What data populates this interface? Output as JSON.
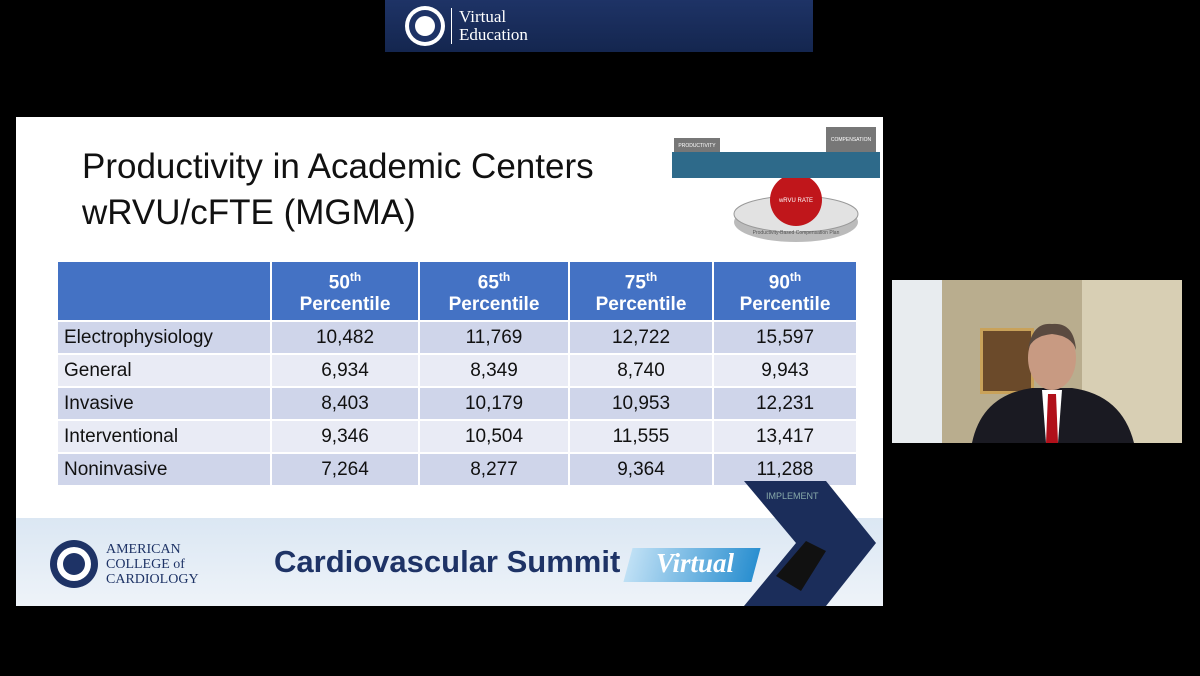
{
  "banner": {
    "line1": "Virtual",
    "line2": "Education"
  },
  "slide": {
    "title": [
      "Productivity in Academic Centers",
      "wRVU/cFTE (MGMA)"
    ],
    "graphic": {
      "left_box": "PRODUCTIVITY",
      "right_box": "COMPENSATION",
      "ball": "wRVU RATE",
      "base": "Productivity-Based Compensation Plan",
      "arrow": "IMPLEMENT"
    },
    "table": {
      "header": [
        {
          "number": "50",
          "suffix": "th",
          "label": "Percentile"
        },
        {
          "number": "65",
          "suffix": "th",
          "label": "Percentile"
        },
        {
          "number": "75",
          "suffix": "th",
          "label": "Percentile"
        },
        {
          "number": "90",
          "suffix": "th",
          "label": "Percentile"
        }
      ],
      "rows": [
        [
          "Electrophysiology",
          "10,482",
          "11,769",
          "12,722",
          "15,597"
        ],
        [
          "General",
          "6,934",
          "8,349",
          "8,740",
          "9,943"
        ],
        [
          "Invasive",
          "8,403",
          "10,179",
          "10,953",
          "12,231"
        ],
        [
          "Interventional",
          "9,346",
          "10,504",
          "11,555",
          "13,417"
        ],
        [
          "Noninvasive",
          "7,264",
          "8,277",
          "9,364",
          "11,288"
        ]
      ]
    },
    "footer": {
      "org": [
        "AMERICAN",
        "COLLEGE of",
        "CARDIOLOGY"
      ],
      "event": "Cardiovascular Summit",
      "tag": "Virtual"
    }
  }
}
